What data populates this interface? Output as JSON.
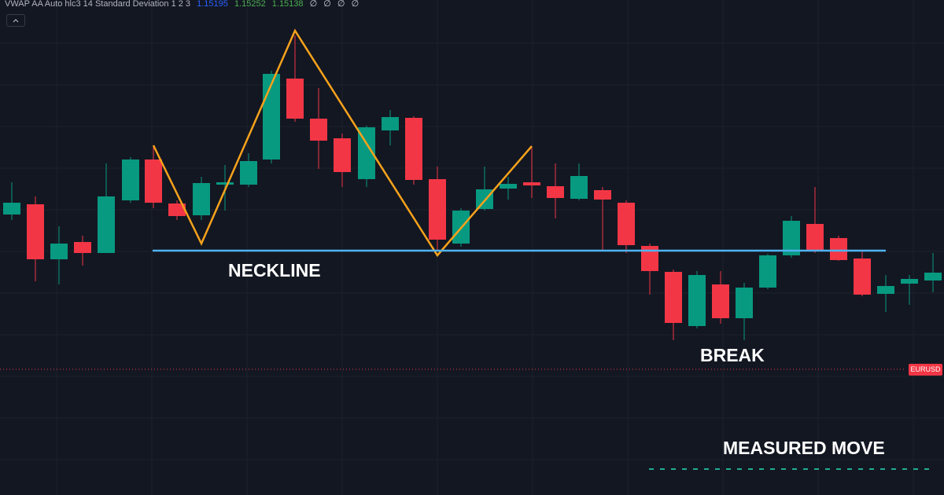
{
  "header": {
    "indicator": "VWAP AA Auto hlc3 14 Standard Deviation 1 2 3",
    "values": [
      "1.15195",
      "1.15252",
      "1.15138",
      "∅",
      "∅",
      "∅",
      "∅"
    ]
  },
  "annotations": {
    "neckline": "NECKLINE",
    "break": "BREAK",
    "measured_move": "MEASURED MOVE"
  },
  "symbol_tag": "EURUSD"
}
